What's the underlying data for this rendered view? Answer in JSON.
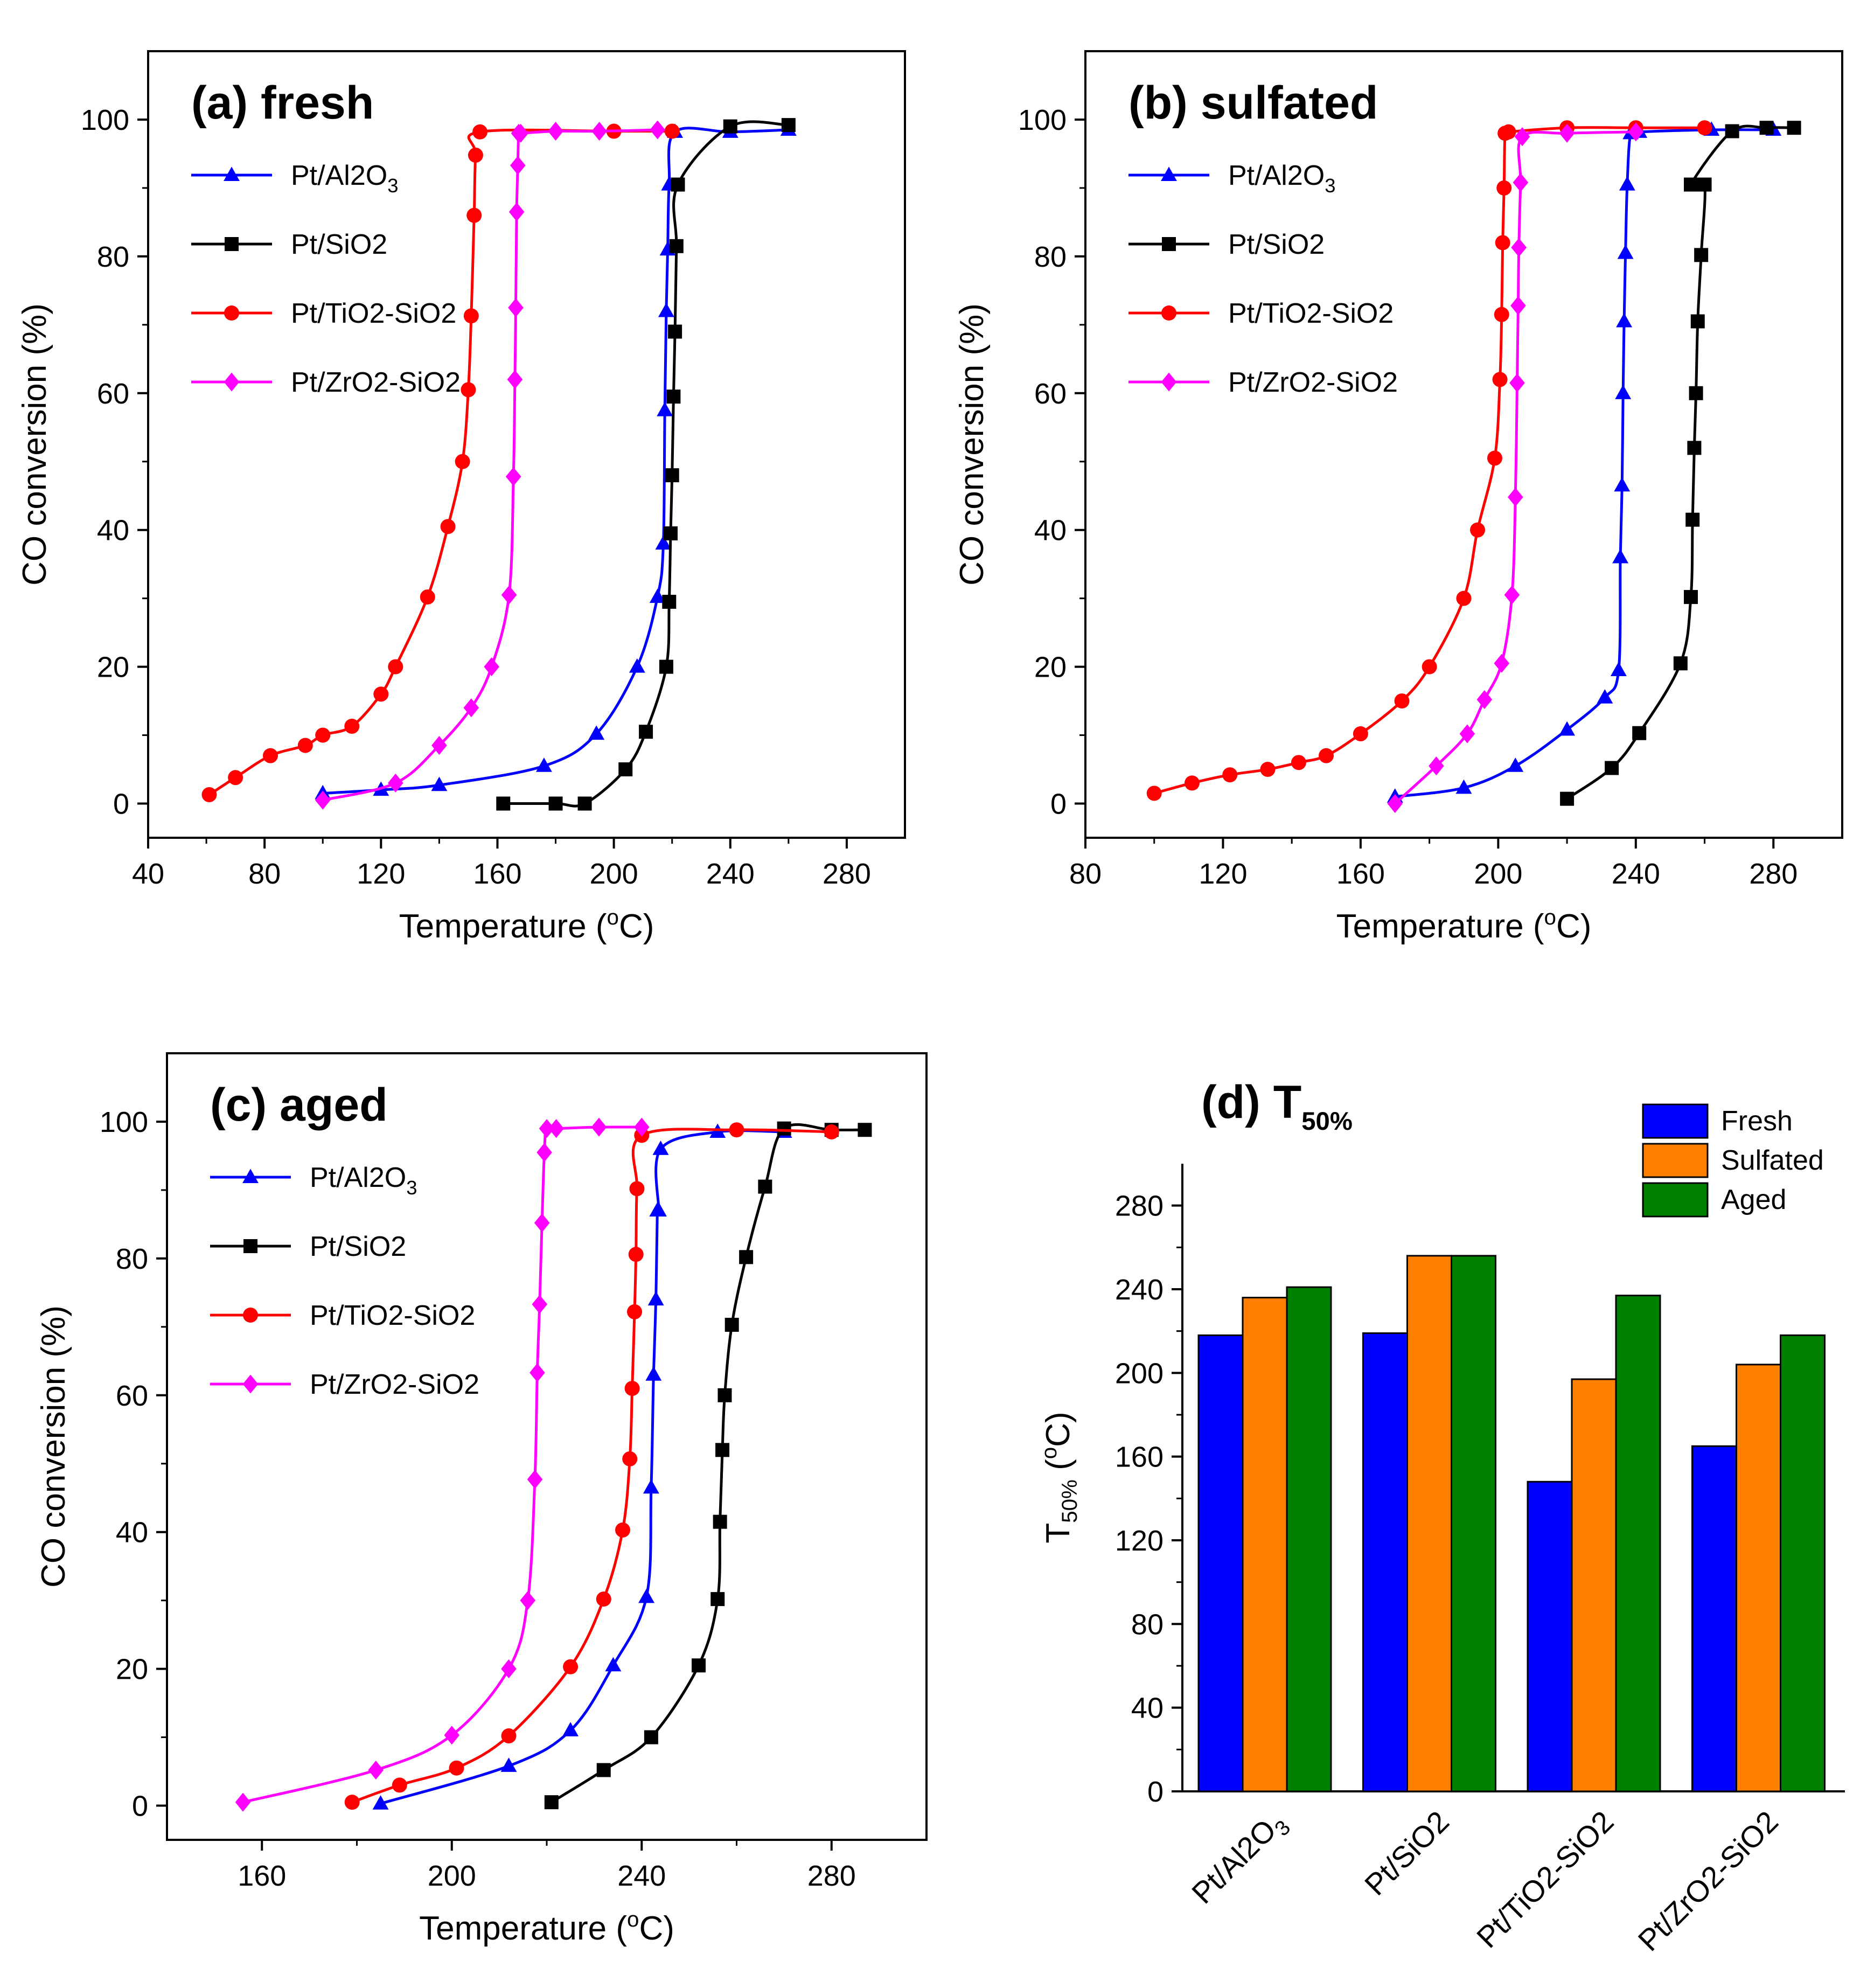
{
  "chart_data": [
    {
      "panel": "a",
      "type": "line",
      "title": "(a) fresh",
      "xlabel": "Temperature (°C)",
      "ylabel": "CO conversion (%)",
      "xlim": [
        40,
        300
      ],
      "ylim": [
        -5,
        110
      ],
      "xticks": [
        40,
        80,
        120,
        160,
        200,
        240,
        280
      ],
      "yticks": [
        0,
        20,
        40,
        60,
        80,
        100
      ],
      "legend_position": "top-left",
      "series": [
        {
          "name": "Pt/Al2O3",
          "color": "#0000ff",
          "marker": "triangle",
          "x": [
            100,
            120,
            140,
            176,
            194,
            208,
            215,
            217,
            217.5,
            218,
            218.5,
            219,
            221,
            240,
            260
          ],
          "y": [
            1.5,
            2,
            2.7,
            5.5,
            10.2,
            20,
            30.2,
            38,
            57.5,
            72,
            81,
            90.5,
            98.2,
            98.2,
            98.5
          ]
        },
        {
          "name": "Pt/SiO2",
          "color": "#000000",
          "marker": "square",
          "x": [
            162,
            180,
            190,
            204,
            211,
            218,
            219,
            219.5,
            220,
            220.5,
            221,
            221.5,
            222,
            240,
            260
          ],
          "y": [
            0,
            0,
            0,
            5,
            10.5,
            20,
            29.5,
            39.5,
            48,
            59.5,
            69,
            81.5,
            90.5,
            99,
            99.2
          ]
        },
        {
          "name": "Pt/TiO2-SiO2",
          "color": "#ff0000",
          "marker": "circle",
          "x": [
            61,
            70,
            82,
            94,
            100,
            110,
            120,
            125,
            136,
            143,
            148,
            150,
            151,
            152,
            152.5,
            154,
            200,
            220
          ],
          "y": [
            1.3,
            3.8,
            7,
            8.5,
            10,
            11.3,
            16,
            20,
            30.2,
            40.5,
            50,
            60.5,
            71.3,
            86,
            94.8,
            98.2,
            98.3,
            98.3
          ]
        },
        {
          "name": "Pt/ZrO2-SiO2",
          "color": "#ff00ff",
          "marker": "diamond",
          "x": [
            100,
            125,
            140,
            151,
            158,
            164,
            165.5,
            166,
            166.3,
            166.6,
            167,
            167.3,
            168,
            180,
            195,
            215
          ],
          "y": [
            0.5,
            3,
            8.5,
            14,
            20,
            30.5,
            47.8,
            62,
            72.5,
            86.5,
            93.3,
            98,
            98,
            98.3,
            98.3,
            98.5
          ]
        }
      ]
    },
    {
      "panel": "b",
      "type": "line",
      "title": "(b) sulfated",
      "xlabel": "Temperature (°C)",
      "ylabel": "CO conversion (%)",
      "xlim": [
        80,
        300
      ],
      "ylim": [
        -5,
        110
      ],
      "xticks": [
        80,
        120,
        160,
        200,
        240,
        280
      ],
      "yticks": [
        0,
        20,
        40,
        60,
        80,
        100
      ],
      "legend_position": "top-left",
      "series": [
        {
          "name": "Pt/Al2O3",
          "color": "#0000ff",
          "marker": "triangle",
          "x": [
            170,
            190,
            205,
            220,
            231,
            235,
            235.5,
            236,
            236.3,
            236.6,
            237,
            237.5,
            238.5,
            241,
            262,
            280
          ],
          "y": [
            1,
            2.3,
            5.5,
            10.8,
            15.5,
            19.5,
            36,
            46.5,
            60,
            70.5,
            80.5,
            90.5,
            98,
            98.2,
            98.5,
            98.5
          ]
        },
        {
          "name": "Pt/SiO2",
          "color": "#000000",
          "marker": "square",
          "x": [
            220,
            233,
            241,
            253,
            256,
            256.5,
            257,
            257.5,
            258,
            259,
            260,
            256,
            268,
            278,
            286
          ],
          "y": [
            0.7,
            5.2,
            10.3,
            20.5,
            30.2,
            41.5,
            52,
            60,
            70.5,
            80.2,
            90.5,
            90.5,
            98.3,
            98.8,
            98.8
          ]
        },
        {
          "name": "Pt/TiO2-SiO2",
          "color": "#ff0000",
          "marker": "circle",
          "x": [
            100,
            111,
            122,
            133,
            142,
            150,
            160,
            172,
            180,
            190,
            194,
            199,
            200.5,
            201,
            201.3,
            201.7,
            202,
            203,
            220,
            240,
            260
          ],
          "y": [
            1.5,
            3,
            4.2,
            5,
            6,
            7,
            10.2,
            15,
            20,
            30,
            40,
            50.5,
            62,
            71.5,
            82,
            90,
            98,
            98.2,
            98.8,
            98.8,
            98.8
          ]
        },
        {
          "name": "Pt/ZrO2-SiO2",
          "color": "#ff00ff",
          "marker": "diamond",
          "x": [
            170,
            182,
            191,
            196,
            201,
            204,
            205,
            205.5,
            205.8,
            206,
            206.5,
            207,
            220,
            240
          ],
          "y": [
            0,
            5.5,
            10.2,
            15.2,
            20.5,
            30.5,
            44.8,
            61.5,
            72.8,
            81.3,
            90.8,
            97.5,
            98,
            98.2
          ]
        }
      ]
    },
    {
      "panel": "c",
      "type": "line",
      "title": "(c) aged",
      "xlabel": "Temperature (°C)",
      "ylabel": "CO conversion (%)",
      "xlim": [
        140,
        300
      ],
      "ylim": [
        -5,
        110
      ],
      "xticks": [
        160,
        200,
        240,
        280
      ],
      "yticks": [
        0,
        20,
        40,
        60,
        80,
        100
      ],
      "legend_position": "top-left",
      "series": [
        {
          "name": "Pt/Al2O3",
          "color": "#0000ff",
          "marker": "triangle",
          "x": [
            185,
            212,
            225,
            234,
            241,
            242,
            242.5,
            243,
            243.3,
            243.6,
            244,
            256,
            270
          ],
          "y": [
            0.3,
            5.8,
            11,
            20.5,
            30.5,
            46.5,
            63,
            74,
            87,
            87,
            96,
            98.5,
            98.5
          ]
        },
        {
          "name": "Pt/SiO2",
          "color": "#000000",
          "marker": "square",
          "x": [
            221,
            232,
            242,
            252,
            256,
            256.5,
            257,
            257.5,
            259,
            262,
            266,
            270,
            280,
            287
          ],
          "y": [
            0.5,
            5.2,
            10,
            20.5,
            30.2,
            41.5,
            52,
            60,
            70.3,
            80.2,
            90.5,
            99,
            98.8,
            98.8
          ]
        },
        {
          "name": "Pt/TiO2-SiO2",
          "color": "#ff0000",
          "marker": "circle",
          "x": [
            179,
            189,
            201,
            212,
            225,
            232,
            236,
            237.5,
            238,
            238.5,
            238.8,
            239,
            240,
            260,
            280
          ],
          "y": [
            0.5,
            3,
            5.5,
            10.2,
            20.3,
            30.2,
            40.3,
            50.7,
            61,
            72.2,
            80.6,
            90.2,
            98,
            98.8,
            98.5
          ]
        },
        {
          "name": "Pt/ZrO2-SiO2",
          "color": "#ff00ff",
          "marker": "diamond",
          "x": [
            156,
            184,
            200,
            212,
            216,
            217.5,
            218,
            218.5,
            219,
            219.5,
            220,
            222,
            231,
            240
          ],
          "y": [
            0.5,
            5.2,
            10.3,
            20,
            30,
            47.7,
            63.3,
            73.3,
            85.2,
            95.5,
            99,
            99,
            99.2,
            99.2
          ]
        }
      ]
    },
    {
      "panel": "d",
      "type": "bar",
      "title": "(d) T",
      "title_sub": "50%",
      "ylabel": "T",
      "ylabel_sub": "50%",
      "ylabel_unit": "(°C)",
      "ylim": [
        0,
        300
      ],
      "yticks": [
        0,
        40,
        80,
        120,
        160,
        200,
        240,
        280
      ],
      "legend_position": "top-right",
      "categories": [
        "Pt/Al2O3",
        "Pt/SiO2",
        "Pt/TiO2-SiO2",
        "Pt/ZrO2-SiO2"
      ],
      "series": [
        {
          "name": "Fresh",
          "color": "#0000ff",
          "values": [
            218,
            219,
            148,
            165
          ]
        },
        {
          "name": "Sulfated",
          "color": "#ff8000",
          "values": [
            236,
            256,
            197,
            204
          ]
        },
        {
          "name": "Aged",
          "color": "#008000",
          "values": [
            241,
            256,
            237,
            218
          ]
        }
      ]
    }
  ]
}
